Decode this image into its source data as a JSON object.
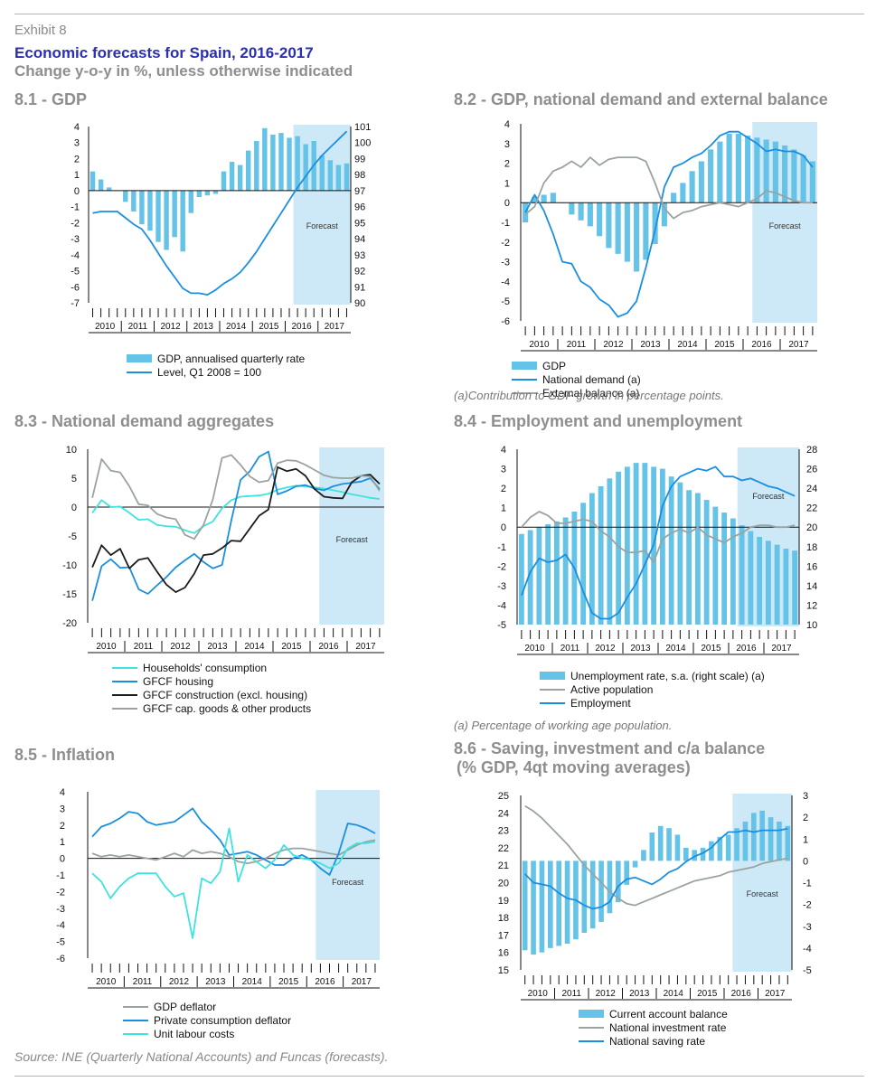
{
  "header": {
    "exhibit": "Exhibit 8",
    "title": "Economic forecasts for Spain, 2016-2017",
    "subtitle": "Change y-o-y in %, unless otherwise indicated"
  },
  "footer": {
    "source": "Source: INE (Quarterly National Accounts) and Funcas (forecasts)."
  },
  "colors": {
    "bar": "#66c3e8",
    "forecast": "#cde8f6",
    "blue": "#1a8fe0",
    "gray": "#9aa3a0",
    "black": "#1c1c1c",
    "cyan": "#3ee3de",
    "title": "#2b2fb0"
  },
  "panels": [
    {
      "title": "8.1 - GDP",
      "note": "",
      "legend": [
        {
          "label": "GDP, annualised quarterly rate",
          "kind": "box",
          "color": "#66c3e8"
        },
        {
          "label": "Level, Q1 2008 = 100",
          "kind": "line",
          "color": "#1a8fe0"
        }
      ]
    },
    {
      "title": "8.2 - GDP, national demand and external balance",
      "note": "(a)Contribution to GDP growth in percentage points.",
      "legend": [
        {
          "label": "GDP",
          "kind": "box",
          "color": "#66c3e8"
        },
        {
          "label": "National demand (a)",
          "kind": "line",
          "color": "#1a8fe0"
        },
        {
          "label": "External balance (a)",
          "kind": "line",
          "color": "#9aa3a0"
        }
      ]
    },
    {
      "title": "8.3 - National demand aggregates",
      "note": "",
      "legend": [
        {
          "label": "Households' consumption",
          "kind": "line",
          "color": "#3ee3de"
        },
        {
          "label": "GFCF housing",
          "kind": "line",
          "color": "#1a8fe0"
        },
        {
          "label": "GFCF construction (excl. housing)",
          "kind": "line",
          "color": "#1c1c1c"
        },
        {
          "label": "GFCF cap. goods & other products",
          "kind": "line",
          "color": "#9aa3a0"
        }
      ]
    },
    {
      "title": "8.4 - Employment and unemployment",
      "note": "(a) Percentage of working age population.",
      "legend": [
        {
          "label": "Unemployment rate, s.a. (right scale) (a)",
          "kind": "box",
          "color": "#66c3e8"
        },
        {
          "label": "Active population",
          "kind": "line",
          "color": "#9aa3a0"
        },
        {
          "label": "Employment",
          "kind": "line",
          "color": "#1a8fe0"
        }
      ]
    },
    {
      "title": "8.5 - Inflation",
      "note": "",
      "legend": [
        {
          "label": "GDP deflator",
          "kind": "line",
          "color": "#9aa3a0"
        },
        {
          "label": "Private consumption deflator",
          "kind": "line",
          "color": "#1a8fe0"
        },
        {
          "label": "Unit labour costs",
          "kind": "line",
          "color": "#3ee3de"
        }
      ]
    },
    {
      "title": "8.6 - Saving, investment and c/a balance",
      "title2": "(% GDP, 4qt moving averages)",
      "note": "",
      "legend": [
        {
          "label": "Current account balance",
          "kind": "box",
          "color": "#66c3e8"
        },
        {
          "label": "National investment rate",
          "kind": "line",
          "color": "#9aa3a0"
        },
        {
          "label": "National saving rate",
          "kind": "line",
          "color": "#1a8fe0"
        }
      ]
    }
  ],
  "chart_data": [
    {
      "type": "bar",
      "title": "8.1 - GDP",
      "years": [
        "2010",
        "2011",
        "2012",
        "2013",
        "2014",
        "2015",
        "2016",
        "2017"
      ],
      "x_quarters": 32,
      "forecast_from": 25,
      "forecast_label": "Forecast",
      "y_left": {
        "min": -7,
        "max": 4,
        "ticks": [
          4,
          3,
          2,
          1,
          0,
          -1,
          -2,
          -3,
          -4,
          -5,
          -6,
          -7
        ]
      },
      "y_right": {
        "min": 90,
        "max": 101,
        "ticks": [
          101,
          100,
          99,
          98,
          97,
          96,
          95,
          94,
          93,
          92,
          91,
          90
        ]
      },
      "bars": {
        "name": "GDP, annualised quarterly rate",
        "axis": "left",
        "values": [
          1.2,
          0.7,
          0.2,
          0,
          -0.7,
          -1.3,
          -2.1,
          -2.5,
          -3.2,
          -3.7,
          -2.9,
          -3.8,
          -1.4,
          -0.4,
          -0.3,
          -0.2,
          1.2,
          1.8,
          1.6,
          2.5,
          3.1,
          3.9,
          3.5,
          3.6,
          3.3,
          3.4,
          2.9,
          3.1,
          2.2,
          1.9,
          1.6,
          1.7
        ]
      },
      "series": [
        {
          "name": "Level, Q1 2008 = 100",
          "axis": "right",
          "color": "#1a8fe0",
          "values": [
            95.6,
            95.7,
            95.7,
            95.7,
            95.3,
            94.9,
            94.6,
            93.9,
            93.1,
            92.3,
            91.6,
            90.9,
            90.6,
            90.6,
            90.5,
            90.8,
            91.2,
            91.5,
            91.9,
            92.5,
            93.2,
            94.0,
            94.8,
            95.6,
            96.4,
            97.2,
            97.9,
            98.6,
            99.2,
            99.7,
            100.2,
            100.7
          ]
        }
      ]
    },
    {
      "type": "bar",
      "title": "8.2 - GDP, national demand and external balance",
      "years": [
        "2010",
        "2011",
        "2012",
        "2013",
        "2014",
        "2015",
        "2016",
        "2017"
      ],
      "x_quarters": 32,
      "forecast_from": 25,
      "forecast_label": "Forecast",
      "y_left": {
        "min": -6,
        "max": 4,
        "ticks": [
          4,
          3,
          2,
          1,
          0,
          -1,
          -2,
          -3,
          -4,
          -5,
          -6
        ]
      },
      "bars": {
        "name": "GDP",
        "axis": "left",
        "values": [
          -1.0,
          0.3,
          0.4,
          0.5,
          0,
          -0.6,
          -0.9,
          -1.2,
          -1.7,
          -2.3,
          -2.6,
          -3.0,
          -3.5,
          -2.9,
          -2.1,
          -1.2,
          0.5,
          1.0,
          1.6,
          2.1,
          2.7,
          3.1,
          3.5,
          3.5,
          3.4,
          3.3,
          3.2,
          3.1,
          2.9,
          2.7,
          2.4,
          2.1
        ]
      },
      "series": [
        {
          "name": "National demand (a)",
          "axis": "left",
          "color": "#1a8fe0",
          "values": [
            -0.5,
            0.4,
            -0.4,
            -1.6,
            -3.0,
            -3.1,
            -4.0,
            -4.3,
            -4.9,
            -5.2,
            -5.8,
            -5.6,
            -5.0,
            -3.3,
            -1.4,
            0.8,
            1.8,
            2.0,
            2.3,
            2.5,
            2.9,
            3.4,
            3.6,
            3.6,
            3.3,
            3.0,
            2.6,
            2.7,
            2.6,
            2.6,
            2.4,
            1.8
          ]
        },
        {
          "name": "External balance (a)",
          "axis": "left",
          "color": "#9aa3a0",
          "values": [
            -0.6,
            -0.2,
            1.0,
            1.6,
            1.8,
            2.1,
            1.8,
            2.3,
            1.9,
            2.2,
            2.3,
            2.3,
            2.3,
            2.1,
            1.0,
            -0.3,
            -0.8,
            -0.5,
            -0.4,
            -0.2,
            -0.1,
            0,
            -0.1,
            -0.2,
            0,
            0.2,
            0.6,
            0.5,
            0.3,
            0.1,
            0,
            0
          ]
        }
      ]
    },
    {
      "type": "line",
      "title": "8.3 - National demand aggregates",
      "years": [
        "2010",
        "2011",
        "2012",
        "2013",
        "2014",
        "2015",
        "2016",
        "2017"
      ],
      "x_quarters": 32,
      "forecast_from": 25,
      "forecast_label": "Forecast",
      "y_left": {
        "min": -20,
        "max": 10,
        "ticks": [
          10,
          5,
          0,
          -5,
          -10,
          -15,
          -20
        ]
      },
      "series": [
        {
          "name": "Households' consumption",
          "color": "#3ee3de",
          "values": [
            -1.0,
            1.2,
            0,
            0.1,
            -1.0,
            -2.2,
            -2.1,
            -3.1,
            -3.3,
            -3.4,
            -4.0,
            -4.5,
            -3.3,
            -2.5,
            -0.2,
            1.2,
            1.8,
            1.9,
            2.0,
            2.3,
            3.0,
            3.4,
            3.7,
            3.6,
            3.4,
            3.2,
            2.9,
            2.6,
            2.2,
            1.9,
            1.6,
            1.4
          ]
        },
        {
          "name": "GFCF housing",
          "color": "#1a8fe0",
          "values": [
            -16.2,
            -10.2,
            -9.0,
            -10.5,
            -10.4,
            -14.2,
            -15.0,
            -13.5,
            -12.1,
            -10.4,
            -9.2,
            -8.1,
            -9.5,
            -10.6,
            -10.0,
            -2.3,
            4.7,
            6.2,
            8.7,
            9.6,
            2.2,
            2.8,
            3.6,
            3.8,
            3.2,
            2.9,
            3.6,
            4.0,
            4.2,
            4.4,
            5.0,
            3.1
          ]
        },
        {
          "name": "GFCF construction (excl. housing)",
          "color": "#1c1c1c",
          "values": [
            -10.4,
            -6.6,
            -8.3,
            -7.2,
            -10.6,
            -9.1,
            -8.8,
            -11.2,
            -13.4,
            -14.7,
            -13.9,
            -11.5,
            -8.3,
            -8.1,
            -7.1,
            -5.8,
            -5.9,
            -3.7,
            -1.5,
            -0.4,
            6.9,
            6.2,
            6.6,
            5.4,
            3.1,
            1.8,
            1.6,
            1.5,
            4.3,
            5.4,
            5.6,
            4.0
          ]
        },
        {
          "name": "GFCF cap. goods & other products",
          "color": "#9aa3a0",
          "values": [
            1.6,
            8.3,
            6.3,
            6.0,
            3.6,
            0.5,
            0.3,
            -1.2,
            -1.8,
            -2.1,
            -4.8,
            -5.5,
            -3.1,
            1.3,
            8.5,
            9.0,
            7.3,
            5.3,
            4.3,
            4.6,
            7.6,
            8.1,
            8.0,
            7.3,
            6.4,
            5.5,
            5.1,
            5.0,
            5.0,
            5.4,
            5.3,
            2.8
          ]
        }
      ]
    },
    {
      "type": "bar",
      "title": "8.4 - Employment and unemployment",
      "years": [
        "2010",
        "2011",
        "2012",
        "2013",
        "2014",
        "2015",
        "2016",
        "2017"
      ],
      "x_quarters": 32,
      "forecast_from": 25,
      "forecast_label": "Forecast",
      "y_left": {
        "min": -5,
        "max": 4,
        "ticks": [
          4,
          3,
          2,
          1,
          0,
          -1,
          -2,
          -3,
          -4,
          -5
        ]
      },
      "y_right": {
        "min": 10,
        "max": 28,
        "ticks": [
          28,
          26,
          24,
          22,
          20,
          18,
          16,
          14,
          12,
          10
        ]
      },
      "bars": {
        "name": "Unemployment rate, s.a. (right scale) (a)",
        "axis": "right",
        "values": [
          19.3,
          19.7,
          20.0,
          20.3,
          20.6,
          21.0,
          21.6,
          22.5,
          23.5,
          24.2,
          25.0,
          25.7,
          26.2,
          26.6,
          26.6,
          26.2,
          26.0,
          25.2,
          24.6,
          23.8,
          23.5,
          22.8,
          22.1,
          21.5,
          20.9,
          20.2,
          19.6,
          19.0,
          18.6,
          18.2,
          17.8,
          17.6
        ]
      },
      "series": [
        {
          "name": "Active population",
          "axis": "left",
          "color": "#9aa3a0",
          "values": [
            0,
            0.5,
            0.8,
            0.6,
            0.2,
            0.2,
            0.3,
            0.4,
            0.3,
            -0.2,
            -0.5,
            -1.0,
            -1.3,
            -1.3,
            -1.2,
            -1.8,
            -0.6,
            -0.3,
            -0.1,
            -0.3,
            0,
            -0.4,
            -0.6,
            -0.8,
            -0.5,
            -0.3,
            0,
            0.1,
            0.1,
            0,
            0,
            0.1
          ]
        },
        {
          "name": "Employment",
          "axis": "left",
          "color": "#1a8fe0",
          "values": [
            -3.5,
            -2.3,
            -1.6,
            -1.8,
            -1.7,
            -1.4,
            -2.1,
            -3.3,
            -4.4,
            -4.7,
            -4.7,
            -4.4,
            -3.6,
            -2.9,
            -1.9,
            -0.9,
            1.1,
            2.1,
            2.6,
            2.8,
            3.0,
            2.9,
            3.1,
            2.6,
            2.6,
            2.4,
            2.5,
            2.3,
            2.1,
            2.0,
            1.8,
            1.6
          ]
        }
      ]
    },
    {
      "type": "line",
      "title": "8.5 - Inflation",
      "years": [
        "2010",
        "2011",
        "2012",
        "2013",
        "2014",
        "2015",
        "2016",
        "2017"
      ],
      "x_quarters": 32,
      "forecast_from": 25,
      "forecast_label": "Forecast",
      "y_left": {
        "min": -6,
        "max": 4,
        "ticks": [
          4,
          3,
          2,
          1,
          0,
          -1,
          -2,
          -3,
          -4,
          -5,
          -6
        ]
      },
      "series": [
        {
          "name": "GDP deflator",
          "color": "#9aa3a0",
          "values": [
            0.3,
            0.1,
            0.2,
            0.1,
            0.2,
            0.1,
            0,
            -0.1,
            0.1,
            0.3,
            0.1,
            0.5,
            0.3,
            0.4,
            0.3,
            0.1,
            -0.2,
            -0.3,
            -0.2,
            0,
            0.3,
            0.5,
            0.6,
            0.6,
            0.5,
            0.4,
            0.3,
            0.2,
            0.5,
            0.8,
            1.0,
            1.1
          ]
        },
        {
          "name": "Private consumption deflator",
          "color": "#1a8fe0",
          "values": [
            1.3,
            1.9,
            2.1,
            2.4,
            2.8,
            2.7,
            2.2,
            2.0,
            2.1,
            2.2,
            2.6,
            3.0,
            2.2,
            1.7,
            1.1,
            0.2,
            0.3,
            0.4,
            0.2,
            -0.1,
            -0.4,
            -0.4,
            0,
            0.2,
            -0.1,
            -0.6,
            -1.0,
            0.3,
            2.1,
            2.0,
            1.8,
            1.5
          ]
        },
        {
          "name": "Unit labour costs",
          "color": "#3ee3de",
          "values": [
            -0.9,
            -1.4,
            -2.4,
            -1.7,
            -1.2,
            -0.9,
            -0.9,
            -0.9,
            -1.7,
            -2.3,
            -2.1,
            -4.8,
            -1.2,
            -1.5,
            -0.8,
            1.8,
            -1.4,
            0.2,
            -0.2,
            -0.6,
            -0.1,
            0.8,
            0.2,
            0,
            -0.1,
            -0.3,
            -0.6,
            -0.3,
            0.6,
            0.9,
            0.9,
            1.0
          ]
        }
      ]
    },
    {
      "type": "bar",
      "title": "8.6 - Saving, investment and c/a balance (% GDP, 4qt moving averages)",
      "years": [
        "2010",
        "2011",
        "2012",
        "2013",
        "2014",
        "2015",
        "2016",
        "2017"
      ],
      "x_quarters": 32,
      "forecast_from": 25,
      "forecast_label": "Forecast",
      "y_left": {
        "min": 15,
        "max": 25,
        "ticks": [
          25,
          24,
          23,
          22,
          21,
          20,
          19,
          18,
          17,
          16,
          15
        ]
      },
      "y_right": {
        "min": -5,
        "max": 3,
        "ticks": [
          3,
          2,
          1,
          0,
          -1,
          -2,
          -3,
          -4,
          -5
        ]
      },
      "bars": {
        "name": "Current account balance",
        "axis": "right",
        "values": [
          -4.1,
          -4.3,
          -4.2,
          -4.0,
          -3.9,
          -3.8,
          -3.6,
          -3.3,
          -3.1,
          -2.8,
          -2.4,
          -1.9,
          -1.1,
          -0.3,
          0.5,
          1.3,
          1.6,
          1.5,
          1.2,
          0.6,
          0.5,
          0.6,
          0.9,
          1.1,
          1.2,
          1.5,
          1.8,
          2.2,
          2.3,
          2.0,
          1.8,
          1.6
        ]
      },
      "series": [
        {
          "name": "National investment rate",
          "axis": "left",
          "color": "#9aa3a0",
          "values": [
            24.4,
            24.1,
            23.7,
            23.2,
            22.7,
            22.2,
            21.6,
            21.0,
            20.5,
            20.0,
            19.5,
            19.1,
            18.8,
            18.7,
            18.9,
            19.1,
            19.3,
            19.5,
            19.7,
            19.9,
            20.1,
            20.2,
            20.3,
            20.4,
            20.6,
            20.7,
            20.8,
            20.9,
            21.1,
            21.2,
            21.3,
            21.4
          ]
        },
        {
          "name": "National saving rate",
          "axis": "left",
          "color": "#1a8fe0",
          "values": [
            20.5,
            20.0,
            19.9,
            19.8,
            19.4,
            19.1,
            19.0,
            18.7,
            18.5,
            18.6,
            18.9,
            19.8,
            20.2,
            20.3,
            20.1,
            19.9,
            20.2,
            20.6,
            20.8,
            21.2,
            21.5,
            21.7,
            22.0,
            22.5,
            22.9,
            22.9,
            23.0,
            22.9,
            23.0,
            23.0,
            23.0,
            23.1
          ]
        }
      ]
    }
  ]
}
